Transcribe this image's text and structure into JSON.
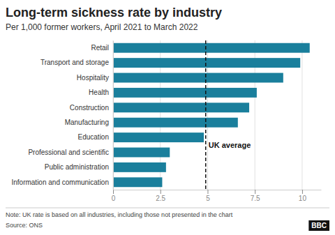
{
  "chart_data": {
    "type": "bar",
    "orientation": "horizontal",
    "title": "Long-term sickness rate by industry",
    "subtitle": "Per 1,000 former workers, April 2021 to March 2022",
    "categories": [
      "Information and communication",
      "Public administration",
      "Professional and scientific",
      "Education",
      "Manufacturing",
      "Construction",
      "Health",
      "Hospitality",
      "Transport and storage",
      "Retail"
    ],
    "values": [
      2.6,
      2.8,
      3.0,
      4.8,
      6.6,
      7.2,
      7.6,
      9.0,
      9.9,
      10.4
    ],
    "color": "#1a7f9c",
    "xlim": [
      0,
      11
    ],
    "xticks": [
      0,
      2.5,
      5,
      7.5,
      10
    ],
    "grid": true,
    "annotations": [
      {
        "x": 4.9,
        "label": "UK average",
        "line_style": "dashed"
      }
    ],
    "note": "Note: UK rate is based on all industries, including those not presented in the chart",
    "source": "Source: ONS",
    "logo": "BBC"
  }
}
